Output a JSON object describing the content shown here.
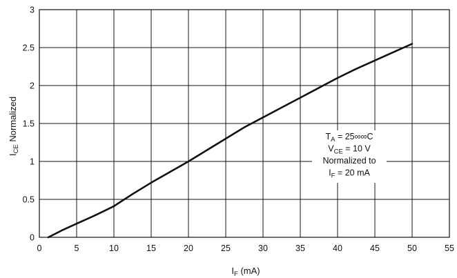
{
  "chart_data": {
    "type": "line",
    "xlabel": {
      "main": "I",
      "sub": "F",
      "rest": " (mA)"
    },
    "ylabel": {
      "main": "I",
      "sub": "CE",
      "rest": " Normalized"
    },
    "xlim": [
      0,
      55
    ],
    "ylim": [
      0,
      3
    ],
    "xticks": [
      0,
      5,
      10,
      15,
      20,
      25,
      30,
      35,
      40,
      45,
      50,
      55
    ],
    "yticks": [
      0,
      0.5,
      1,
      1.5,
      2,
      2.5,
      3
    ],
    "xtick_labels": [
      "0",
      "5",
      "10",
      "15",
      "20",
      "25",
      "30",
      "35",
      "40",
      "45",
      "50",
      "55"
    ],
    "ytick_labels": [
      "0",
      "0.5",
      "1",
      "1.5",
      "2",
      "2.5",
      "3"
    ],
    "grid": true,
    "series": [
      {
        "x": [
          1.2,
          3,
          5,
          7.5,
          10,
          12.5,
          15,
          17.5,
          20,
          22.5,
          25,
          27.5,
          30,
          32.5,
          35,
          37.5,
          40,
          42.5,
          45,
          47.5,
          50
        ],
        "y": [
          0.0,
          0.09,
          0.18,
          0.29,
          0.41,
          0.57,
          0.72,
          0.86,
          1.0,
          1.15,
          1.3,
          1.45,
          1.58,
          1.71,
          1.84,
          1.97,
          2.1,
          2.22,
          2.33,
          2.44,
          2.55
        ]
      }
    ],
    "annotation": [
      {
        "main": "T",
        "sub": "A",
        "rest": " = 25∞∞C"
      },
      {
        "main": "V",
        "sub": "CE",
        "rest": " = 10 V"
      },
      {
        "main": "Normalized to",
        "sub": "",
        "rest": ""
      },
      {
        "main": "I",
        "sub": "F",
        "rest": " = 20 mA"
      }
    ]
  }
}
